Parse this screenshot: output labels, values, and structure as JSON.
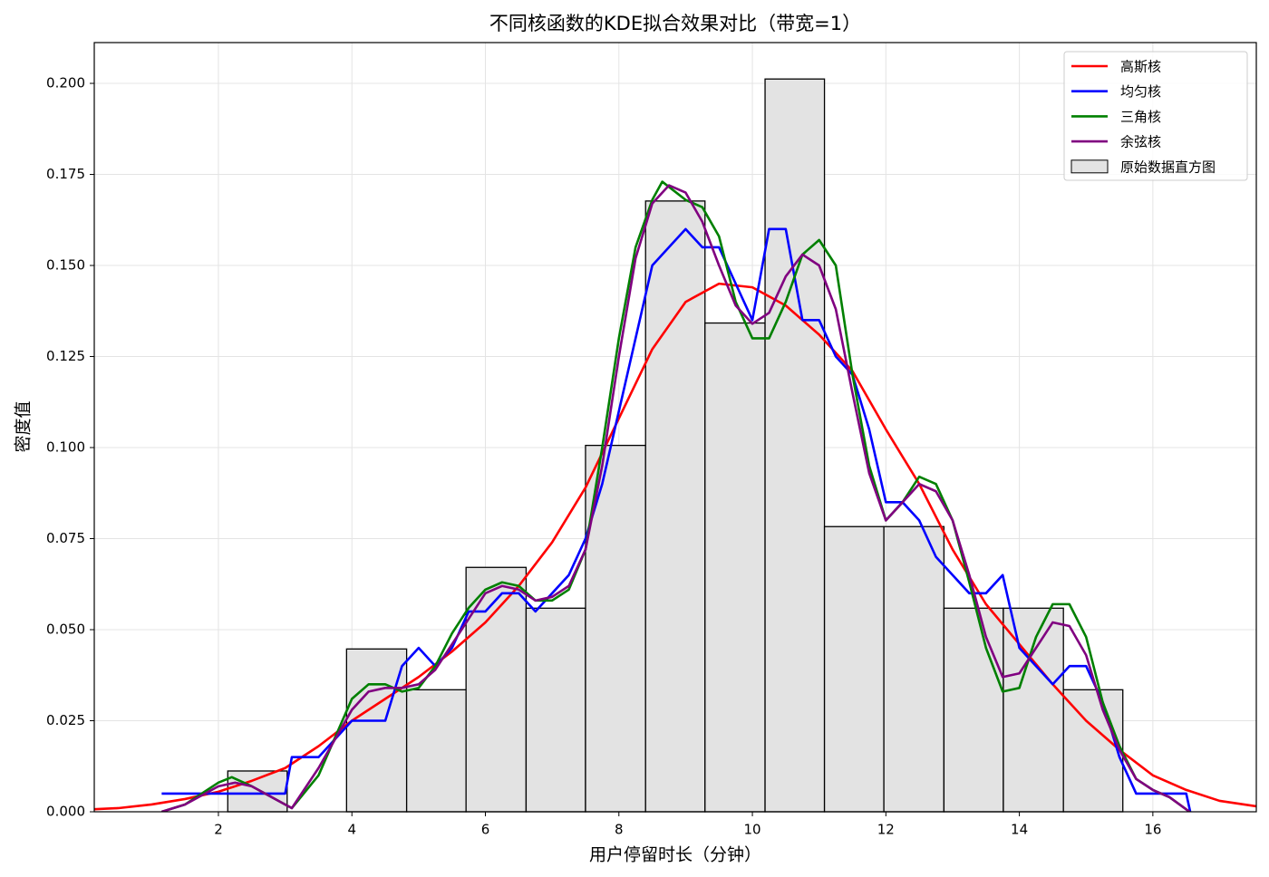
{
  "chart_data": {
    "type": "histogram",
    "title": "不同核函数的KDE拟合效果对比（带宽=1）",
    "x_label": "用户停留时长（分钟）",
    "y_label": "密度值",
    "hist_name": "原始数据直方图",
    "hist_color": "#e3e3e3",
    "bins": [
      2.14,
      3.03,
      3.92,
      4.82,
      5.71,
      6.61,
      7.5,
      8.4,
      9.29,
      10.19,
      11.08,
      11.97,
      12.87,
      13.76,
      14.66,
      15.55
    ],
    "values": [
      0.0112,
      0,
      0.0447,
      0.0335,
      0.0671,
      0.0559,
      0.1006,
      0.1677,
      0.1342,
      0.2012,
      0.0783,
      0.0783,
      0.0559,
      0.0559,
      0.0335
    ],
    "series": [
      {
        "name": "高斯核",
        "color": "#ff0000",
        "x": [
          0.14,
          0.5,
          1,
          1.5,
          2,
          2.5,
          3,
          3.5,
          4,
          4.5,
          5,
          5.5,
          6,
          6.5,
          7,
          7.5,
          8,
          8.5,
          9,
          9.5,
          10,
          10.5,
          11,
          11.5,
          12,
          12.5,
          13,
          13.5,
          14,
          14.5,
          15,
          15.5,
          16,
          16.5,
          17,
          17.55
        ],
        "values": [
          0.0007,
          0.001,
          0.002,
          0.0035,
          0.0055,
          0.0085,
          0.012,
          0.018,
          0.025,
          0.031,
          0.037,
          0.044,
          0.052,
          0.062,
          0.074,
          0.089,
          0.108,
          0.127,
          0.14,
          0.145,
          0.144,
          0.139,
          0.131,
          0.121,
          0.105,
          0.09,
          0.072,
          0.057,
          0.046,
          0.035,
          0.025,
          0.017,
          0.01,
          0.006,
          0.003,
          0.0015
        ]
      },
      {
        "name": "均匀核",
        "color": "#0000ff",
        "x": [
          1.15,
          1.5,
          2,
          2.5,
          3,
          3.1,
          3.5,
          3.75,
          4,
          4.25,
          4.5,
          4.75,
          5,
          5.25,
          5.5,
          5.75,
          6,
          6.25,
          6.5,
          6.75,
          7,
          7.25,
          7.5,
          7.75,
          8,
          8.25,
          8.5,
          8.75,
          9,
          9.25,
          9.5,
          9.75,
          10,
          10.25,
          10.5,
          10.75,
          11,
          11.25,
          11.5,
          11.75,
          12,
          12.25,
          12.5,
          12.75,
          13,
          13.25,
          13.5,
          13.75,
          14,
          14.25,
          14.5,
          14.75,
          15,
          15.25,
          15.5,
          15.75,
          16,
          16.5,
          16.56
        ],
        "values": [
          0.005,
          0.005,
          0.005,
          0.005,
          0.005,
          0.015,
          0.015,
          0.02,
          0.025,
          0.025,
          0.025,
          0.04,
          0.045,
          0.04,
          0.045,
          0.055,
          0.055,
          0.06,
          0.06,
          0.055,
          0.06,
          0.065,
          0.075,
          0.09,
          0.11,
          0.13,
          0.15,
          0.155,
          0.16,
          0.155,
          0.155,
          0.145,
          0.135,
          0.16,
          0.16,
          0.135,
          0.135,
          0.125,
          0.12,
          0.105,
          0.085,
          0.085,
          0.08,
          0.07,
          0.065,
          0.06,
          0.06,
          0.065,
          0.045,
          0.04,
          0.035,
          0.04,
          0.04,
          0.03,
          0.015,
          0.005,
          0.005,
          0.005,
          0
        ]
      },
      {
        "name": "三角核",
        "color": "#008000",
        "x": [
          1.15,
          1.5,
          2,
          2.2,
          2.5,
          3,
          3.1,
          3.5,
          4,
          4.25,
          4.5,
          4.75,
          5,
          5.25,
          5.5,
          5.75,
          6,
          6.25,
          6.5,
          6.75,
          7,
          7.25,
          7.5,
          7.75,
          8,
          8.25,
          8.5,
          8.65,
          9,
          9.25,
          9.5,
          9.75,
          10,
          10.25,
          10.5,
          10.75,
          11,
          11.25,
          11.5,
          11.75,
          12,
          12.25,
          12.5,
          12.75,
          13,
          13.25,
          13.5,
          13.75,
          14,
          14.25,
          14.5,
          14.75,
          15,
          15.25,
          15.5,
          15.75,
          16,
          16.25,
          16.55
        ],
        "values": [
          0,
          0.002,
          0.008,
          0.0095,
          0.007,
          0.002,
          0.001,
          0.01,
          0.031,
          0.035,
          0.035,
          0.033,
          0.034,
          0.04,
          0.049,
          0.056,
          0.061,
          0.063,
          0.062,
          0.058,
          0.058,
          0.061,
          0.072,
          0.1,
          0.13,
          0.155,
          0.168,
          0.173,
          0.168,
          0.166,
          0.158,
          0.14,
          0.13,
          0.13,
          0.14,
          0.153,
          0.157,
          0.15,
          0.12,
          0.095,
          0.08,
          0.085,
          0.092,
          0.09,
          0.08,
          0.063,
          0.045,
          0.033,
          0.034,
          0.048,
          0.057,
          0.057,
          0.048,
          0.03,
          0.018,
          0.009,
          0.006,
          0.004,
          0
        ]
      },
      {
        "name": "余弦核",
        "color": "#800080",
        "x": [
          1.15,
          1.5,
          2,
          2.25,
          2.5,
          3,
          3.1,
          3.5,
          4,
          4.25,
          4.5,
          4.75,
          5,
          5.25,
          5.5,
          5.75,
          6,
          6.25,
          6.5,
          6.75,
          7,
          7.25,
          7.5,
          7.75,
          8,
          8.25,
          8.5,
          8.75,
          9,
          9.25,
          9.5,
          9.75,
          10,
          10.25,
          10.5,
          10.75,
          11,
          11.25,
          11.5,
          11.75,
          12,
          12.25,
          12.5,
          12.75,
          13,
          13.25,
          13.5,
          13.75,
          14,
          14.25,
          14.5,
          14.75,
          15,
          15.25,
          15.5,
          15.75,
          16,
          16.25,
          16.55
        ],
        "values": [
          0,
          0.002,
          0.007,
          0.008,
          0.007,
          0.002,
          0.001,
          0.012,
          0.028,
          0.033,
          0.034,
          0.034,
          0.035,
          0.039,
          0.046,
          0.053,
          0.06,
          0.062,
          0.061,
          0.058,
          0.059,
          0.062,
          0.072,
          0.095,
          0.125,
          0.152,
          0.167,
          0.172,
          0.17,
          0.162,
          0.15,
          0.139,
          0.134,
          0.137,
          0.147,
          0.153,
          0.15,
          0.138,
          0.115,
          0.093,
          0.08,
          0.085,
          0.09,
          0.088,
          0.08,
          0.065,
          0.048,
          0.037,
          0.038,
          0.045,
          0.052,
          0.051,
          0.043,
          0.028,
          0.017,
          0.009,
          0.006,
          0.004,
          0
        ]
      }
    ],
    "xlim": [
      0.14,
      17.55
    ],
    "ylim": [
      0,
      0.2112
    ],
    "xticks": [
      2,
      4,
      6,
      8,
      10,
      12,
      14,
      16
    ],
    "yticks": [
      {
        "value": 0,
        "label": "0.000"
      },
      {
        "value": 0.025,
        "label": "0.025"
      },
      {
        "value": 0.05,
        "label": "0.050"
      },
      {
        "value": 0.075,
        "label": "0.075"
      },
      {
        "value": 0.1,
        "label": "0.100"
      },
      {
        "value": 0.125,
        "label": "0.125"
      },
      {
        "value": 0.15,
        "label": "0.150"
      },
      {
        "value": 0.175,
        "label": "0.175"
      },
      {
        "value": 0.2,
        "label": "0.200"
      }
    ],
    "grid": true,
    "legend": "upper right"
  }
}
